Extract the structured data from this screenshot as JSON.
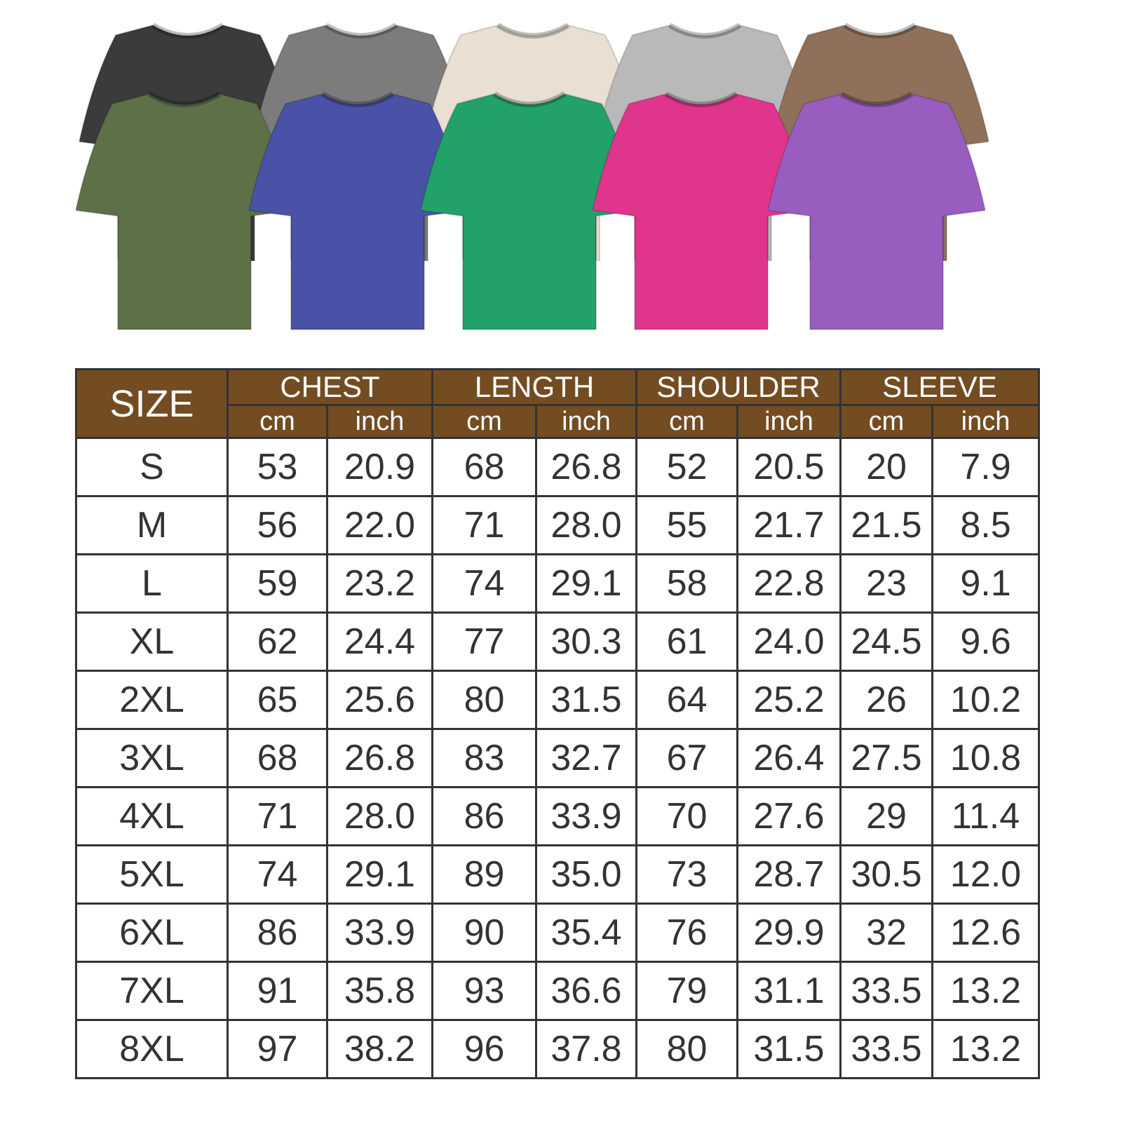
{
  "shirts": {
    "back_row": [
      {
        "color_hex": "#3b3b3b"
      },
      {
        "color_hex": "#7c7c7c"
      },
      {
        "color_hex": "#e9dfd2"
      },
      {
        "color_hex": "#b9b9b9"
      },
      {
        "color_hex": "#8f705b"
      }
    ],
    "front_row": [
      {
        "color_hex": "#5e7047"
      },
      {
        "color_hex": "#4952a6"
      },
      {
        "color_hex": "#22a169"
      },
      {
        "color_hex": "#df358d"
      },
      {
        "color_hex": "#995cbf"
      }
    ]
  },
  "size_chart": {
    "header_color": "#734c22",
    "size_label": "SIZE",
    "groups": [
      "CHEST",
      "LENGTH",
      "SHOULDER",
      "SLEEVE"
    ],
    "units": [
      "cm",
      "inch"
    ],
    "rows": [
      [
        "S",
        "53",
        "20.9",
        "68",
        "26.8",
        "52",
        "20.5",
        "20",
        "7.9"
      ],
      [
        "M",
        "56",
        "22.0",
        "71",
        "28.0",
        "55",
        "21.7",
        "21.5",
        "8.5"
      ],
      [
        "L",
        "59",
        "23.2",
        "74",
        "29.1",
        "58",
        "22.8",
        "23",
        "9.1"
      ],
      [
        "XL",
        "62",
        "24.4",
        "77",
        "30.3",
        "61",
        "24.0",
        "24.5",
        "9.6"
      ],
      [
        "2XL",
        "65",
        "25.6",
        "80",
        "31.5",
        "64",
        "25.2",
        "26",
        "10.2"
      ],
      [
        "3XL",
        "68",
        "26.8",
        "83",
        "32.7",
        "67",
        "26.4",
        "27.5",
        "10.8"
      ],
      [
        "4XL",
        "71",
        "28.0",
        "86",
        "33.9",
        "70",
        "27.6",
        "29",
        "11.4"
      ],
      [
        "5XL",
        "74",
        "29.1",
        "89",
        "35.0",
        "73",
        "28.7",
        "30.5",
        "12.0"
      ],
      [
        "6XL",
        "86",
        "33.9",
        "90",
        "35.4",
        "76",
        "29.9",
        "32",
        "12.6"
      ],
      [
        "7XL",
        "91",
        "35.8",
        "93",
        "36.6",
        "79",
        "31.1",
        "33.5",
        "13.2"
      ],
      [
        "8XL",
        "97",
        "38.2",
        "96",
        "37.8",
        "80",
        "31.5",
        "33.5",
        "13.2"
      ]
    ]
  }
}
